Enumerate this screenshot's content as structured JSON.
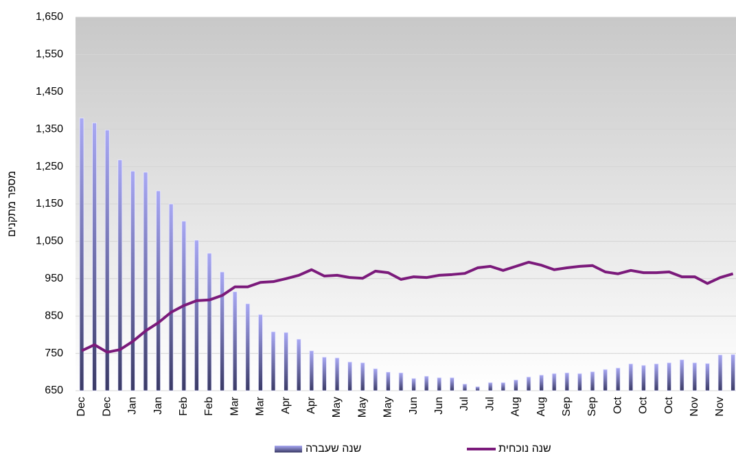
{
  "chart_data": {
    "type": "bar-line",
    "y_label": "מספר מתקנים",
    "categories": [
      "Dec",
      null,
      "Dec",
      null,
      "Jan",
      null,
      "Jan",
      null,
      "Feb",
      null,
      "Feb",
      null,
      "Mar",
      null,
      "Mar",
      null,
      "Apr",
      null,
      "Apr",
      null,
      "May",
      null,
      "May",
      null,
      "May",
      null,
      "Jun",
      null,
      "Jun",
      null,
      "Jul",
      null,
      "Jul",
      null,
      "Aug",
      null,
      "Aug",
      null,
      "Sep",
      null,
      "Sep",
      null,
      "Oct",
      null,
      "Oct",
      null,
      "Oct",
      null,
      "Nov",
      null,
      "Nov",
      null
    ],
    "series": [
      {
        "name": "שנה שעברה",
        "type": "bar",
        "color": "#8c8ce0",
        "values": [
          1380,
          1367,
          1348,
          1268,
          1238,
          1235,
          1185,
          1150,
          1104,
          1053,
          1018,
          968,
          915,
          883,
          854,
          808,
          806,
          788,
          757,
          740,
          738,
          727,
          725,
          709,
          700,
          698,
          683,
          689,
          685,
          685,
          668,
          661,
          672,
          672,
          679,
          687,
          692,
          696,
          698,
          696,
          701,
          707,
          711,
          722,
          718,
          722,
          725,
          733,
          725,
          723,
          746,
          747
        ]
      },
      {
        "name": "שנה נוכחית",
        "type": "line",
        "color": "#7b1a7b",
        "values": [
          757,
          773,
          753,
          760,
          782,
          810,
          832,
          860,
          878,
          891,
          893,
          905,
          928,
          928,
          940,
          942,
          950,
          959,
          974,
          957,
          959,
          953,
          951,
          970,
          966,
          948,
          955,
          953,
          959,
          961,
          964,
          979,
          983,
          972,
          983,
          994,
          986,
          974,
          979,
          983,
          985,
          968,
          963,
          972,
          966,
          966,
          968,
          955,
          955,
          937,
          953,
          963
        ]
      }
    ],
    "ylim": [
      650,
      1650
    ],
    "yticks": [
      650,
      750,
      850,
      950,
      {
        "value": 1050,
        "label": "1,050"
      },
      {
        "value": 1150,
        "label": "1,150"
      },
      {
        "value": 1250,
        "label": "1,250"
      },
      {
        "value": 1350,
        "label": "1,350"
      },
      {
        "value": 1450,
        "label": "1,450"
      },
      {
        "value": 1550,
        "label": "1,550"
      },
      {
        "value": 1650,
        "label": "1,650"
      }
    ],
    "grid": true,
    "legend": "bottom"
  }
}
